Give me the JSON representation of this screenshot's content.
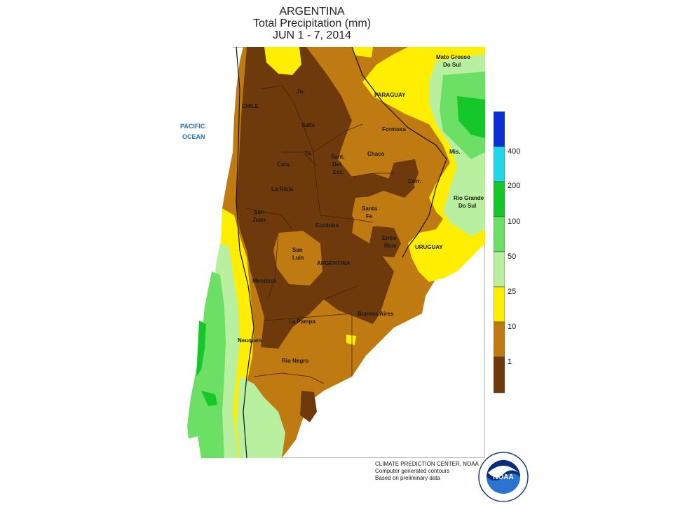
{
  "title": {
    "line1": "ARGENTINA",
    "line2": "Total Precipitation (mm)",
    "line3": "JUN 1 - 7, 2014"
  },
  "labels": {
    "pacific": "PACIFIC",
    "ocean": "OCEAN",
    "chile": "CHILE",
    "paraguay": "PARAGUAY",
    "uruguay": "URUGUAY",
    "argentina": "ARGENTINA",
    "jujuy": "Ju.",
    "salta": "Salta",
    "formosa": "Formosa",
    "tucuman": "Tu.",
    "catamarca": "Cata.",
    "sant_line1": "Sant.",
    "sant_line2": "Del.",
    "sant_line3": "Est.",
    "chaco": "Chaco",
    "misiones": "Mis.",
    "corrientes": "Corr.",
    "la_rioja": "La Rioja",
    "san_juan_1": "San",
    "san_juan_2": "Juan",
    "cordoba": "Cordoba",
    "santa_fe_1": "Santa",
    "santa_fe_2": "Fe",
    "entre_rios_1": "Entre",
    "entre_rios_2": "Rios",
    "san_luis_1": "San",
    "san_luis_2": "Luis",
    "mendoza": "Mendoza",
    "buenos_aires": "Buenos Aires",
    "la_pampa": "La Pampa",
    "neuquen": "Neuquen",
    "rio_negro": "Rio Negro",
    "mato_grosso_1": "Mato Grosso",
    "mato_grosso_2": "Do Sul",
    "rio_grande_1": "Rio Grande",
    "rio_grande_2": "Do Sul"
  },
  "legend": {
    "thresholds": [
      "400",
      "200",
      "100",
      "50",
      "25",
      "10",
      "1"
    ],
    "colors": {
      "above_400": "#0a2fd8",
      "200_400": "#20d8e8",
      "100_200": "#16c72a",
      "50_100": "#6ce064",
      "25_50": "#b9f0a0",
      "10_25": "#ffee00",
      "1_10": "#c07a12",
      "below_1": "#6e3a0c"
    }
  },
  "credits": {
    "line1": "CLIMATE PREDICTION CENTER, NOAA",
    "line2": "Computer generated contours",
    "line3": "Based on preliminary data"
  },
  "logo": {
    "text": "NOAA",
    "ring_text": "NATIONAL OCEANIC AND ATMOSPHERIC ADMINISTRATION · U.S. DEPARTMENT OF COMMERCE"
  }
}
